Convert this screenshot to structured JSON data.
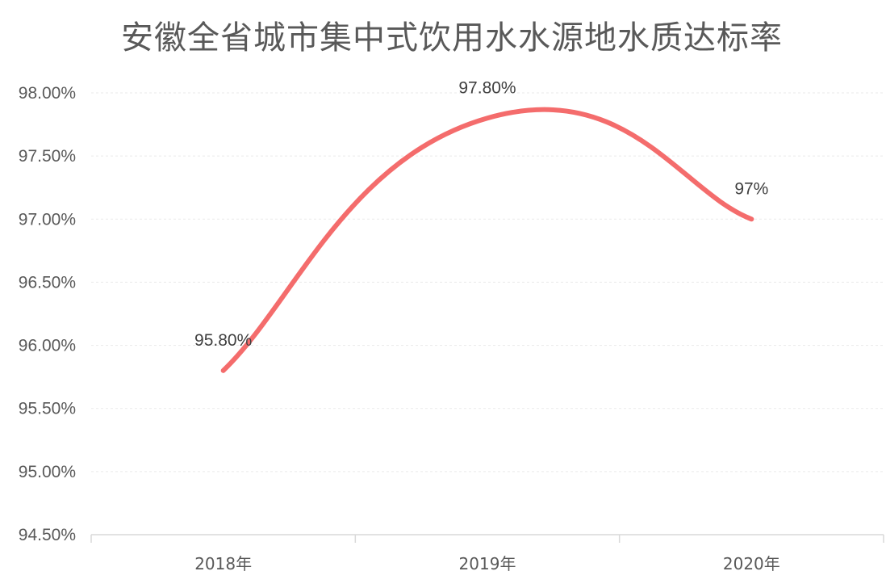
{
  "chart_data": {
    "type": "line",
    "title": "安徽全省城市集中式饮用水水源地水质达标率",
    "xlabel": "",
    "ylabel": "",
    "categories": [
      "2018年",
      "2019年",
      "2020年"
    ],
    "series": [
      {
        "values": [
          95.8,
          97.8,
          97.0
        ],
        "data_labels": [
          "95.80%",
          "97.80%",
          "97%"
        ],
        "color": "#f46c6c",
        "smooth": true
      }
    ],
    "ylim": [
      94.5,
      98.0
    ],
    "yticks": [
      94.5,
      95.0,
      95.5,
      96.0,
      96.5,
      97.0,
      97.5,
      98.0
    ],
    "ytick_labels": [
      "94.50%",
      "95.00%",
      "95.50%",
      "96.00%",
      "96.50%",
      "97.00%",
      "97.50%",
      "98.00%"
    ],
    "grid": "horizontal-dashed",
    "legend": "none"
  }
}
